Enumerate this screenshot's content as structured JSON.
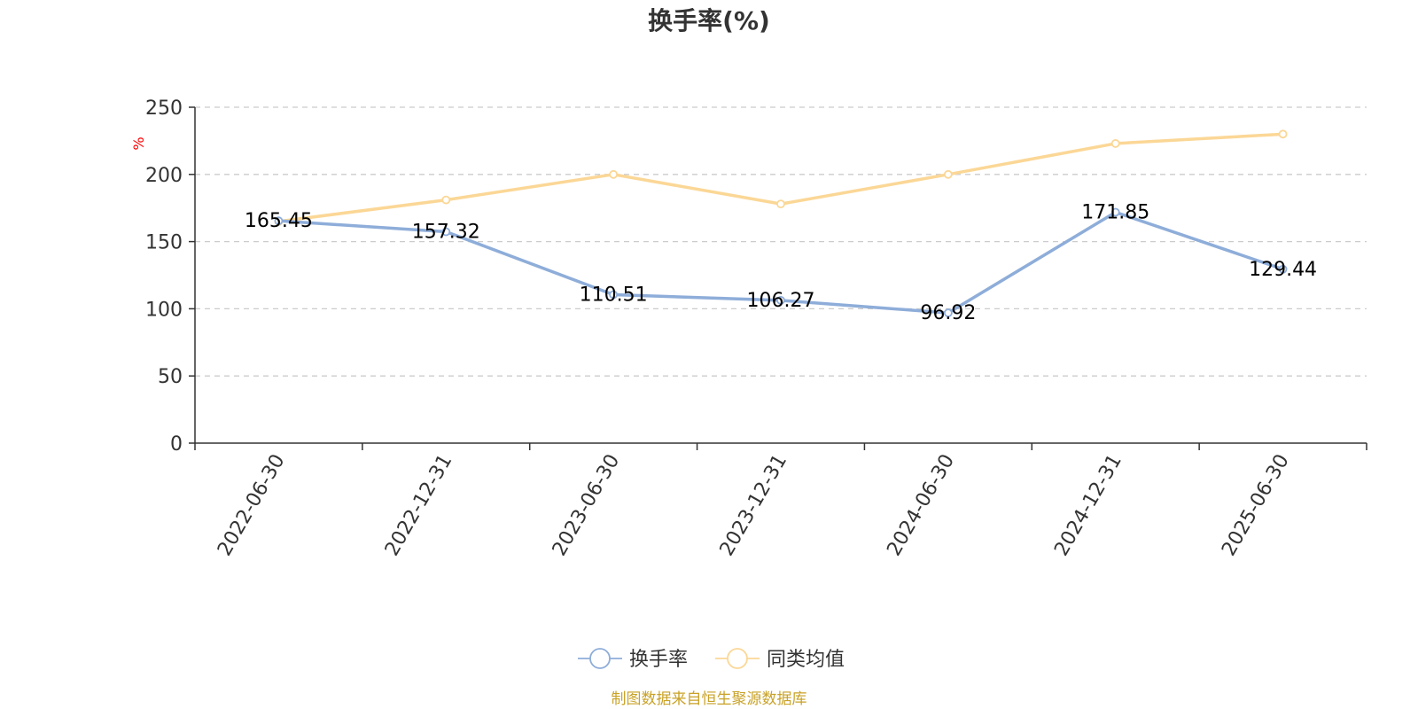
{
  "chart_data": {
    "type": "line",
    "title": "换手率(%)",
    "ylabel": "%",
    "ylim": [
      0,
      250
    ],
    "yticks": [
      0,
      50,
      100,
      150,
      200,
      250
    ],
    "grid": true,
    "legend_position": "bottom",
    "categories": [
      "2022-06-30",
      "2022-12-31",
      "2023-06-30",
      "2023-12-31",
      "2024-06-30",
      "2024-12-31",
      "2025-06-30"
    ],
    "series": [
      {
        "name": "换手率",
        "color": "#8eadd9",
        "values": [
          165.45,
          157.32,
          110.51,
          106.27,
          96.92,
          171.85,
          129.44
        ],
        "labels": [
          "165.45",
          "157.32",
          "110.51",
          "106.27",
          "96.92",
          "171.85",
          "129.44"
        ]
      },
      {
        "name": "同类均值",
        "color": "#fbd796",
        "values": [
          165,
          181,
          200,
          178,
          200,
          223,
          230
        ]
      }
    ]
  },
  "source_text": "制图数据来自恒生聚源数据库",
  "colors": {
    "axis": "#333333",
    "grid": "#cccccc",
    "unit": "#ff0000",
    "source": "#c9a227"
  }
}
